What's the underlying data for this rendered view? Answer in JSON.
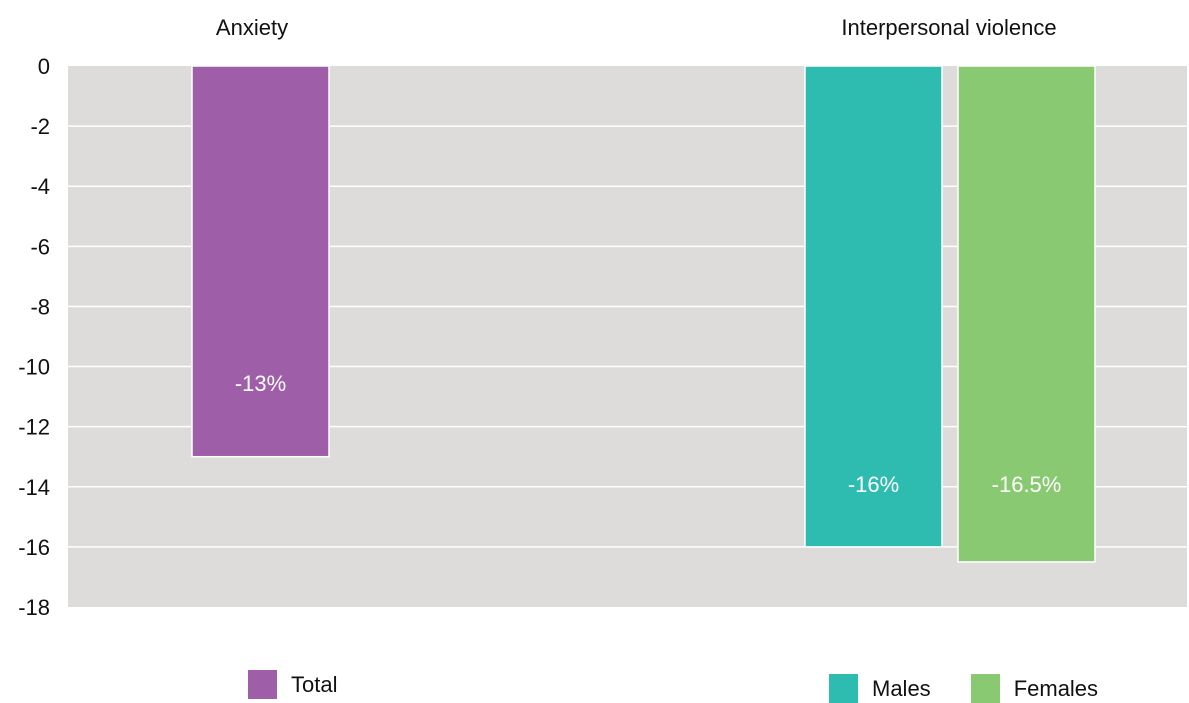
{
  "chart_data": {
    "type": "bar",
    "ylim": [
      -18,
      0
    ],
    "yticks": [
      0,
      -2,
      -4,
      -6,
      -8,
      -10,
      -12,
      -14,
      -16,
      -18
    ],
    "grid": true,
    "plot_background": "#dedbdb",
    "panels": [
      {
        "title": "Anxiety",
        "series": [
          {
            "name": "Total",
            "value": -13,
            "label": "-13%",
            "color": "#9e5ea8"
          }
        ]
      },
      {
        "title": "Interpersonal violence",
        "series": [
          {
            "name": "Males",
            "value": -16,
            "label": "-16%",
            "color": "#2ebbb0"
          },
          {
            "name": "Females",
            "value": -16.5,
            "label": "-16.5%",
            "color": "#88c972"
          }
        ]
      }
    ]
  }
}
